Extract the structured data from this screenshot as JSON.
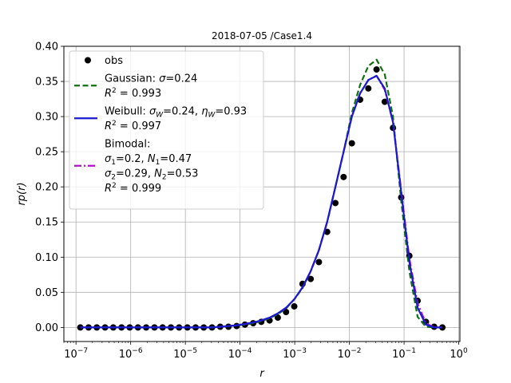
{
  "chart_data": {
    "type": "line",
    "title": "2018-07-05 /Case1.4",
    "xlabel": "r",
    "ylabel": "rp(r)",
    "xscale": "log",
    "xlim": [
      6e-08,
      1.05
    ],
    "ylim": [
      -0.02,
      0.4
    ],
    "grid": true,
    "legend_placement": "top-left",
    "x_ticks": [
      {
        "value": 1e-07,
        "mantissa": "10",
        "exp": "−7"
      },
      {
        "value": 1e-06,
        "mantissa": "10",
        "exp": "−6"
      },
      {
        "value": 1e-05,
        "mantissa": "10",
        "exp": "−5"
      },
      {
        "value": 0.0001,
        "mantissa": "10",
        "exp": "−4"
      },
      {
        "value": 0.001,
        "mantissa": "10",
        "exp": "−3"
      },
      {
        "value": 0.01,
        "mantissa": "10",
        "exp": "−2"
      },
      {
        "value": 0.1,
        "mantissa": "10",
        "exp": "−1"
      },
      {
        "value": 1,
        "mantissa": "10",
        "exp": "0"
      }
    ],
    "y_ticks": [
      {
        "value": 0.0,
        "label": "0.00"
      },
      {
        "value": 0.05,
        "label": "0.05"
      },
      {
        "value": 0.1,
        "label": "0.10"
      },
      {
        "value": 0.15,
        "label": "0.15"
      },
      {
        "value": 0.2,
        "label": "0.20"
      },
      {
        "value": 0.25,
        "label": "0.25"
      },
      {
        "value": 0.3,
        "label": "0.30"
      },
      {
        "value": 0.35,
        "label": "0.35"
      },
      {
        "value": 0.4,
        "label": "0.40"
      }
    ],
    "x": [
      1.2e-07,
      1.7e-07,
      2.4e-07,
      3.4e-07,
      4.8e-07,
      6.8e-07,
      9.6e-07,
      1.36e-06,
      1.92e-06,
      2.72e-06,
      3.84e-06,
      5.44e-06,
      7.68e-06,
      1.09e-05,
      1.54e-05,
      2.17e-05,
      3.07e-05,
      4.34e-05,
      6.14e-05,
      8.68e-05,
      0.000123,
      0.000174,
      0.000245,
      0.000347,
      0.000491,
      0.000694,
      0.000981,
      0.00139,
      0.00196,
      0.00277,
      0.00392,
      0.00555,
      0.00784,
      0.0111,
      0.0157,
      0.0222,
      0.0314,
      0.0443,
      0.0627,
      0.0887,
      0.125,
      0.177,
      0.251,
      0.355,
      0.502
    ],
    "series": [
      {
        "name": "obs",
        "kind": "marker",
        "color": "#000000",
        "values": [
          0,
          0,
          0,
          0,
          0,
          0,
          0,
          0,
          0,
          0,
          0,
          0,
          0,
          0,
          0,
          0,
          0,
          0.001,
          0.001,
          0.002,
          0.004,
          0.006,
          0.008,
          0.01,
          0.014,
          0.022,
          0.03,
          0.062,
          0.069,
          0.093,
          0.136,
          0.177,
          0.214,
          0.262,
          0.324,
          0.34,
          0.367,
          0.321,
          0.284,
          0.185,
          0.102,
          0.038,
          0.008,
          0.001,
          0
        ]
      },
      {
        "name": "Gaussian",
        "kind": "line",
        "dash": "dashed",
        "color": "#107010",
        "values": [
          0,
          0,
          0,
          0,
          0,
          0,
          0,
          0,
          0,
          0,
          0,
          0,
          0,
          0,
          0,
          0,
          0,
          0.001,
          0.002,
          0.003,
          0.004,
          0.006,
          0.009,
          0.013,
          0.019,
          0.027,
          0.04,
          0.056,
          0.08,
          0.11,
          0.15,
          0.2,
          0.25,
          0.305,
          0.345,
          0.372,
          0.381,
          0.36,
          0.3,
          0.18,
          0.08,
          0.015,
          0.001,
          0,
          0
        ]
      },
      {
        "name": "Weibull",
        "kind": "line",
        "dash": "solid",
        "color": "#1a1ad0",
        "values": [
          0,
          0,
          0,
          0,
          0,
          0,
          0,
          0,
          0,
          0,
          0,
          0,
          0,
          0,
          0,
          0,
          0,
          0.001,
          0.002,
          0.003,
          0.005,
          0.007,
          0.01,
          0.014,
          0.02,
          0.028,
          0.04,
          0.057,
          0.08,
          0.11,
          0.15,
          0.2,
          0.25,
          0.3,
          0.333,
          0.352,
          0.358,
          0.34,
          0.292,
          0.192,
          0.093,
          0.028,
          0.004,
          0,
          0
        ]
      },
      {
        "name": "Bimodal",
        "kind": "line",
        "dash": "dashdot",
        "color": "#b012c8",
        "values": [
          0,
          0,
          0,
          0,
          0,
          0,
          0,
          0,
          0,
          0,
          0,
          0,
          0,
          0,
          0,
          0,
          0,
          0.001,
          0.002,
          0.003,
          0.005,
          0.007,
          0.01,
          0.014,
          0.02,
          0.028,
          0.04,
          0.057,
          0.08,
          0.11,
          0.15,
          0.2,
          0.25,
          0.3,
          0.333,
          0.352,
          0.358,
          0.338,
          0.292,
          0.195,
          0.098,
          0.034,
          0.006,
          0,
          0
        ]
      }
    ],
    "legend": [
      {
        "series": "obs",
        "lines": [
          [
            {
              "t": "obs"
            }
          ]
        ]
      },
      {
        "series": "Gaussian",
        "lines": [
          [
            {
              "t": "Gaussian: "
            },
            {
              "t": "σ",
              "i": true
            },
            {
              "t": "=0.24"
            }
          ],
          [
            {
              "t": "R",
              "i": true
            },
            {
              "t": "2",
              "sup": true
            },
            {
              "t": " = 0.993"
            }
          ]
        ]
      },
      {
        "series": "Weibull",
        "lines": [
          [
            {
              "t": "Weibull: "
            },
            {
              "t": "σ",
              "i": true
            },
            {
              "t": "W",
              "sub": true,
              "i": true
            },
            {
              "t": "=0.24, "
            },
            {
              "t": "η",
              "i": true
            },
            {
              "t": "W",
              "sub": true,
              "i": true
            },
            {
              "t": "=0.93"
            }
          ],
          [
            {
              "t": "R",
              "i": true
            },
            {
              "t": "2",
              "sup": true
            },
            {
              "t": " = 0.997"
            }
          ]
        ]
      },
      {
        "series": "Bimodal",
        "lines": [
          [
            {
              "t": "Bimodal:"
            }
          ],
          [
            {
              "t": "σ",
              "i": true
            },
            {
              "t": "1",
              "sub": true
            },
            {
              "t": "=0.2, "
            },
            {
              "t": "N",
              "i": true
            },
            {
              "t": "1",
              "sub": true
            },
            {
              "t": "=0.47"
            }
          ],
          [
            {
              "t": "σ",
              "i": true
            },
            {
              "t": "2",
              "sub": true
            },
            {
              "t": "=0.29, "
            },
            {
              "t": "N",
              "i": true
            },
            {
              "t": "2",
              "sub": true
            },
            {
              "t": "=0.53"
            }
          ],
          [
            {
              "t": "R",
              "i": true
            },
            {
              "t": "2",
              "sup": true
            },
            {
              "t": " = 0.999"
            }
          ]
        ]
      }
    ]
  }
}
